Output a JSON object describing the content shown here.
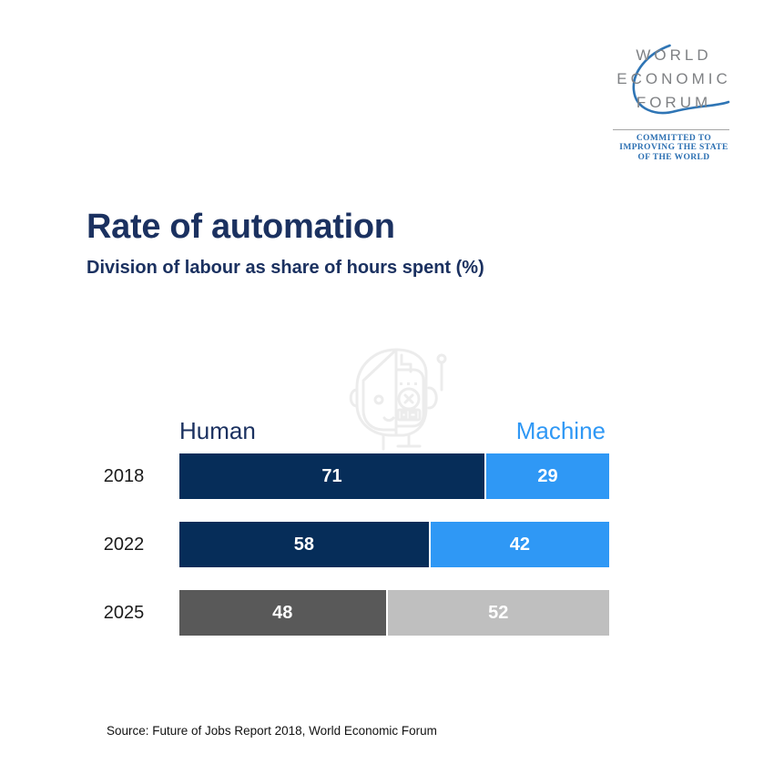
{
  "logo": {
    "lines": [
      "WORLD",
      "ECONOMIC",
      "FORUM"
    ],
    "tagline_lines": [
      "COMMITTED TO",
      "IMPROVING THE STATE",
      "OF THE WORLD"
    ],
    "text_color": "#7f8184",
    "tagline_color": "#2b6fb2",
    "swoosh_color": "#2f75b5"
  },
  "header": {
    "title": "Rate of automation",
    "subtitle": "Division of labour as share of hours spent (%)"
  },
  "legend": {
    "human": "Human",
    "machine": "Machine",
    "human_color": "#1b3160",
    "machine_color": "#2f98f5"
  },
  "watermark_icon": "robot-half-human-head-icon",
  "chart_data": {
    "type": "bar",
    "orientation": "horizontal-stacked",
    "title": "Rate of automation",
    "subtitle": "Division of labour as share of hours spent (%)",
    "categories": [
      "2018",
      "2022",
      "2025"
    ],
    "series": [
      {
        "name": "Human",
        "values": [
          71,
          58,
          48
        ]
      },
      {
        "name": "Machine",
        "values": [
          29,
          42,
          52
        ]
      }
    ],
    "xlim": [
      0,
      100
    ],
    "unit": "%",
    "legend_position": "above-bar-ends",
    "grid": false,
    "rows": [
      {
        "year": "2018",
        "human": 71,
        "machine": 29,
        "human_color": "#062d59",
        "machine_color": "#2f98f5"
      },
      {
        "year": "2022",
        "human": 58,
        "machine": 42,
        "human_color": "#062d59",
        "machine_color": "#2f98f5"
      },
      {
        "year": "2025",
        "human": 48,
        "machine": 52,
        "human_color": "#595959",
        "machine_color": "#bfbfbf"
      }
    ]
  },
  "source": "Source: Future of Jobs Report 2018, World Economic Forum"
}
